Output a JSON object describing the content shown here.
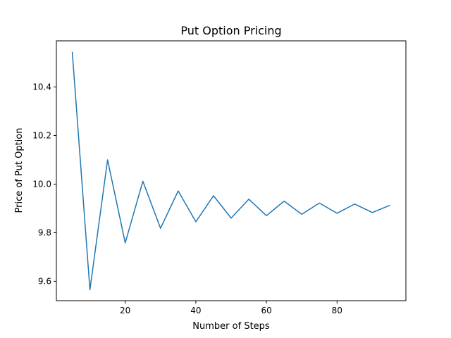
{
  "chart_data": {
    "type": "line",
    "title": "Put Option Pricing",
    "xlabel": "Number of Steps",
    "ylabel": "Price of Put Option",
    "xlim": [
      0.5,
      99.5
    ],
    "ylim": [
      9.52,
      10.59
    ],
    "xticks": [
      20,
      40,
      60,
      80
    ],
    "yticks": [
      9.6,
      9.8,
      10.0,
      10.2,
      10.4
    ],
    "xtick_labels": [
      "20",
      "40",
      "60",
      "80"
    ],
    "ytick_labels": [
      "9.6",
      "9.8",
      "10.0",
      "10.2",
      "10.4"
    ],
    "grid": false,
    "color": "#1f77b4",
    "series": [
      {
        "x": [
          5,
          10,
          15,
          20,
          25,
          30,
          35,
          40,
          45,
          50,
          55,
          60,
          65,
          70,
          75,
          80,
          85,
          90,
          95
        ],
        "y": [
          10.545,
          9.565,
          10.1,
          9.758,
          10.012,
          9.818,
          9.972,
          9.845,
          9.952,
          9.86,
          9.938,
          9.87,
          9.93,
          9.876,
          9.922,
          9.88,
          9.918,
          9.883,
          9.913
        ]
      }
    ]
  }
}
